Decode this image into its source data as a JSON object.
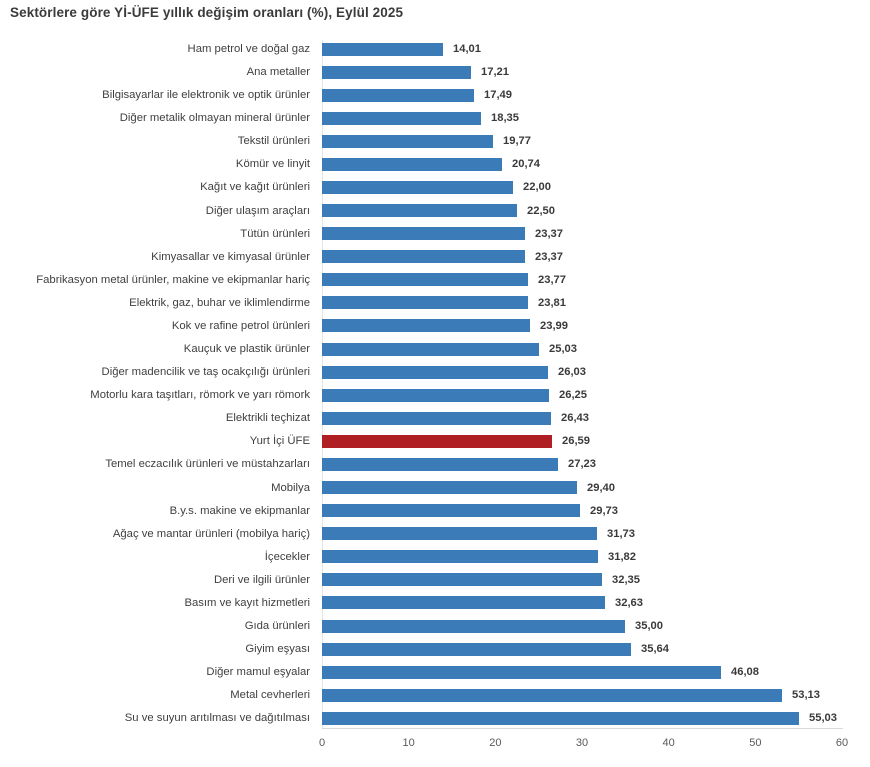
{
  "title": "Sektörlere göre Yİ-ÜFE yıllık değişim oranları (%), Eylül 2025",
  "colors": {
    "bar": "#3b7cb8",
    "highlight": "#b01f24",
    "axis_line": "#d9d9d9",
    "category_text": "#404040",
    "value_text": "#3a3a3a",
    "tick_text": "#595959"
  },
  "chart_data": {
    "type": "bar",
    "orientation": "horizontal",
    "title": "Sektörlere göre Yİ-ÜFE yıllık değişim oranları (%), Eylül 2025",
    "xlabel": "",
    "ylabel": "",
    "xlim": [
      0,
      60
    ],
    "x_ticks": [
      "0",
      "10",
      "20",
      "30",
      "40",
      "50",
      "60"
    ],
    "grid": false,
    "legend": false,
    "highlight_category": "Yurt İçi ÜFE",
    "highlight_index": 17,
    "categories": [
      "Ham petrol ve doğal gaz",
      "Ana metaller",
      "Bilgisayarlar ile elektronik ve optik ürünler",
      "Diğer metalik olmayan mineral ürünler",
      "Tekstil ürünleri",
      "Kömür ve linyit",
      "Kağıt ve kağıt ürünleri",
      "Diğer ulaşım araçları",
      "Tütün ürünleri",
      "Kimyasallar ve kimyasal ürünler",
      "Fabrikasyon metal ürünler, makine ve ekipmanlar hariç",
      "Elektrik, gaz, buhar ve iklimlendirme",
      "Kok ve rafine petrol ürünleri",
      "Kauçuk ve plastik ürünler",
      "Diğer madencilik ve taş ocakçılığı ürünleri",
      "Motorlu kara taşıtları, römork ve yarı römork",
      "Elektrikli teçhizat",
      "Yurt İçi ÜFE",
      "Temel eczacılık ürünleri ve müstahzarları",
      "Mobilya",
      "B.y.s. makine ve ekipmanlar",
      "Ağaç ve mantar ürünleri (mobilya hariç)",
      "İçecekler",
      "Deri ve ilgili ürünler",
      "Basım ve kayıt hizmetleri",
      "Gıda ürünleri",
      "Giyim eşyası",
      "Diğer mamul eşyalar",
      "Metal cevherleri",
      "Su ve suyun arıtılması ve dağıtılması"
    ],
    "values": [
      14.01,
      17.21,
      17.49,
      18.35,
      19.77,
      20.74,
      22.0,
      22.5,
      23.37,
      23.37,
      23.77,
      23.81,
      23.99,
      25.03,
      26.03,
      26.25,
      26.43,
      26.59,
      27.23,
      29.4,
      29.73,
      31.73,
      31.82,
      32.35,
      32.63,
      35.0,
      35.64,
      46.08,
      53.13,
      55.03
    ],
    "value_labels": [
      "14,01",
      "17,21",
      "17,49",
      "18,35",
      "19,77",
      "20,74",
      "22,00",
      "22,50",
      "23,37",
      "23,37",
      "23,77",
      "23,81",
      "23,99",
      "25,03",
      "26,03",
      "26,25",
      "26,43",
      "26,59",
      "27,23",
      "29,40",
      "29,73",
      "31,73",
      "31,82",
      "32,35",
      "32,63",
      "35,00",
      "35,64",
      "46,08",
      "53,13",
      "55,03"
    ]
  }
}
